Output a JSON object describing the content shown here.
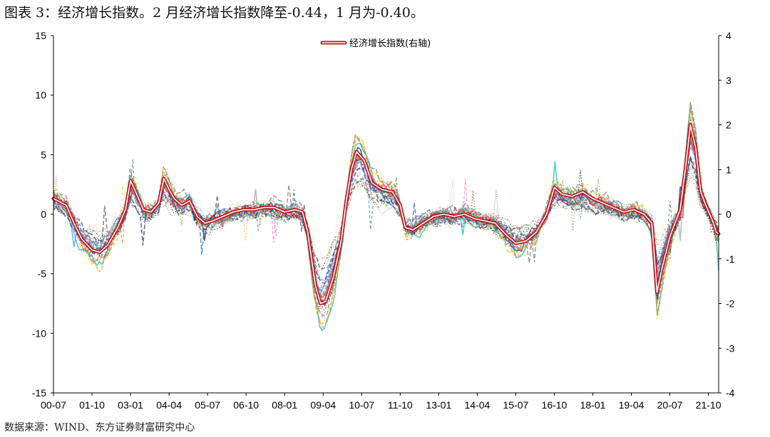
{
  "title": "图表 3：经济增长指数。2 月经济增长指数降至-0.44，1 月为-0.40。",
  "source": "数据来源：WIND、东方证券财富研究中心",
  "chart_data": {
    "type": "line",
    "x_ticks": [
      "00-07",
      "01-10",
      "03-01",
      "04-04",
      "05-07",
      "06-10",
      "08-01",
      "09-04",
      "10-07",
      "11-10",
      "13-01",
      "14-04",
      "15-07",
      "16-10",
      "18-01",
      "19-04",
      "20-07",
      "21-10"
    ],
    "x_range": [
      "2000-07",
      "2022-02"
    ],
    "ylim_left": [
      -15,
      15
    ],
    "yticks_left": [
      15,
      10,
      5,
      0,
      -5,
      -10,
      -15
    ],
    "ylim_right": [
      -4,
      4
    ],
    "yticks_right": [
      4,
      3,
      2,
      1,
      0,
      -1,
      -2,
      -3,
      -4
    ],
    "legend": {
      "position": "top-center",
      "entries": [
        "经济增长指数(右轴)"
      ]
    },
    "series": [
      {
        "name": "经济增长指数(右轴)",
        "axis": "right",
        "color": "#c0141c",
        "points": [
          [
            "2000-07",
            0.35
          ],
          [
            "2000-12",
            0.2
          ],
          [
            "2001-03",
            -0.2
          ],
          [
            "2001-06",
            -0.55
          ],
          [
            "2001-10",
            -0.8
          ],
          [
            "2002-01",
            -0.85
          ],
          [
            "2002-04",
            -0.7
          ],
          [
            "2002-08",
            -0.3
          ],
          [
            "2002-11",
            0.1
          ],
          [
            "2003-01",
            0.75
          ],
          [
            "2003-03",
            0.5
          ],
          [
            "2003-06",
            0.1
          ],
          [
            "2003-09",
            0.05
          ],
          [
            "2003-12",
            0.25
          ],
          [
            "2004-02",
            0.8
          ],
          [
            "2004-04",
            0.55
          ],
          [
            "2004-06",
            0.35
          ],
          [
            "2004-09",
            0.2
          ],
          [
            "2004-12",
            0.3
          ],
          [
            "2005-03",
            -0.05
          ],
          [
            "2005-06",
            -0.2
          ],
          [
            "2005-09",
            -0.15
          ],
          [
            "2006-01",
            -0.05
          ],
          [
            "2006-05",
            0.05
          ],
          [
            "2006-09",
            0.1
          ],
          [
            "2007-01",
            0.1
          ],
          [
            "2007-05",
            0.15
          ],
          [
            "2007-09",
            0.15
          ],
          [
            "2008-01",
            0.05
          ],
          [
            "2008-05",
            0.1
          ],
          [
            "2008-08",
            0.05
          ],
          [
            "2008-10",
            -0.4
          ],
          [
            "2009-01",
            -1.6
          ],
          [
            "2009-03",
            -2.0
          ],
          [
            "2009-05",
            -1.95
          ],
          [
            "2009-08",
            -1.4
          ],
          [
            "2009-11",
            -0.6
          ],
          [
            "2010-01",
            0.3
          ],
          [
            "2010-03",
            1.0
          ],
          [
            "2010-05",
            1.4
          ],
          [
            "2010-08",
            1.2
          ],
          [
            "2010-11",
            0.7
          ],
          [
            "2011-03",
            0.55
          ],
          [
            "2011-07",
            0.5
          ],
          [
            "2011-10",
            0.2
          ],
          [
            "2011-12",
            -0.3
          ],
          [
            "2012-03",
            -0.35
          ],
          [
            "2012-07",
            -0.2
          ],
          [
            "2012-11",
            -0.05
          ],
          [
            "2013-03",
            0.0
          ],
          [
            "2013-07",
            -0.05
          ],
          [
            "2013-11",
            0.0
          ],
          [
            "2014-03",
            -0.1
          ],
          [
            "2014-07",
            -0.15
          ],
          [
            "2014-11",
            -0.2
          ],
          [
            "2015-03",
            -0.45
          ],
          [
            "2015-07",
            -0.65
          ],
          [
            "2015-11",
            -0.6
          ],
          [
            "2016-03",
            -0.4
          ],
          [
            "2016-07",
            0.0
          ],
          [
            "2016-10",
            0.6
          ],
          [
            "2017-01",
            0.45
          ],
          [
            "2017-05",
            0.4
          ],
          [
            "2017-09",
            0.5
          ],
          [
            "2018-01",
            0.35
          ],
          [
            "2018-05",
            0.25
          ],
          [
            "2018-09",
            0.15
          ],
          [
            "2019-01",
            0.05
          ],
          [
            "2019-05",
            0.1
          ],
          [
            "2019-09",
            0.0
          ],
          [
            "2019-12",
            -0.2
          ],
          [
            "2020-02",
            -1.75
          ],
          [
            "2020-04",
            -1.2
          ],
          [
            "2020-07",
            -0.5
          ],
          [
            "2020-11",
            0.1
          ],
          [
            "2021-01",
            1.0
          ],
          [
            "2021-03",
            2.0
          ],
          [
            "2021-05",
            1.5
          ],
          [
            "2021-07",
            0.5
          ],
          [
            "2021-09",
            0.2
          ],
          [
            "2021-12",
            -0.2
          ],
          [
            "2022-01",
            -0.4
          ],
          [
            "2022-02",
            -0.44
          ]
        ]
      }
    ],
    "background_series_note_colors": [
      "#1a1a6e",
      "#2e75b6",
      "#70ad47",
      "#ffc000",
      "#a5a5a5",
      "#ed7d31",
      "#5b9bd5",
      "#264478",
      "#9e480e",
      "#636363",
      "#997300",
      "#43682b",
      "#17becf",
      "#e377c2",
      "#bcbd22",
      "#7f7f7f",
      "#8c564b",
      "#9467bd",
      "#d62728",
      "#ff69b4"
    ]
  }
}
